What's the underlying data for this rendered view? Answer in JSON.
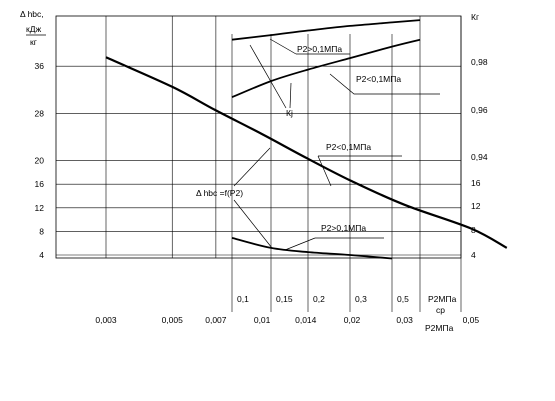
{
  "chart_data": {
    "type": "line",
    "title": "",
    "left_axis": {
      "label_lines": [
        "Δ hbc,",
        "кДж",
        "кг"
      ],
      "ticks": [
        "36",
        "28",
        "20",
        "16",
        "12",
        "8",
        "4"
      ],
      "values": [
        36,
        28,
        20,
        16,
        12,
        8,
        4
      ]
    },
    "right_axis": {
      "label": "Кг",
      "ticks": [
        "0,98",
        "0,96",
        "0,94",
        "16",
        "12",
        "8",
        "4"
      ]
    },
    "bottom_axis_outer": {
      "ticks": [
        "0,003",
        "0,005",
        "0,007",
        "0,01",
        "0,014",
        "0,02",
        "0,03",
        "0,05"
      ],
      "values": [
        0.003,
        0.005,
        0.007,
        0.01,
        0.014,
        0.02,
        0.03,
        0.05
      ],
      "label_lines": [
        "ср",
        "Р2МПа"
      ]
    },
    "bottom_axis_inner": {
      "ticks": [
        "0,1",
        "0,15",
        "0,2",
        "0,3",
        "0,5"
      ],
      "values": [
        0.1,
        0.15,
        0.2,
        0.3,
        0.5
      ],
      "label": "Р2МПа"
    },
    "series": [
      {
        "name": "Δ hbc =f(Р2)",
        "axis": "left",
        "x_axis": "outer",
        "x": [
          0.003,
          0.005,
          0.007,
          0.01,
          0.014,
          0.02,
          0.03,
          0.05,
          0.066
        ],
        "y": [
          37.5,
          32.5,
          28.5,
          24.5,
          20.5,
          16.5,
          12.5,
          8.5,
          5.2
        ]
      },
      {
        "name": "Р2<0,1МПа",
        "axis": "right",
        "x_axis": "inner",
        "x": [
          0.1,
          0.15,
          0.2,
          0.3,
          0.5,
          0.7
        ],
        "y": [
          0.966,
          0.973,
          0.978,
          0.983,
          0.988,
          0.991
        ]
      },
      {
        "name": "Р2>0,1МПа",
        "axis": "right",
        "x_axis": "inner",
        "x": [
          0.1,
          0.15,
          0.2,
          0.3,
          0.5,
          0.7
        ],
        "y": [
          0.991,
          0.993,
          0.995,
          0.997,
          0.9985,
          0.9995
        ]
      },
      {
        "name": "Р2>0,1МПа",
        "axis": "right_kg",
        "x_axis": "inner",
        "x": [
          0.1,
          0.15,
          0.2,
          0.3,
          0.5
        ],
        "y": [
          6.9,
          5.2,
          4.5,
          4.0,
          3.4
        ]
      }
    ],
    "annotations": [
      "Р2>0,1МПа",
      "Р2<0,1МПа",
      "Кj",
      "Р2<0,1МПа",
      "Δ hbc =f(Р2)",
      "Р2>0,1МПа"
    ],
    "grid": true
  }
}
